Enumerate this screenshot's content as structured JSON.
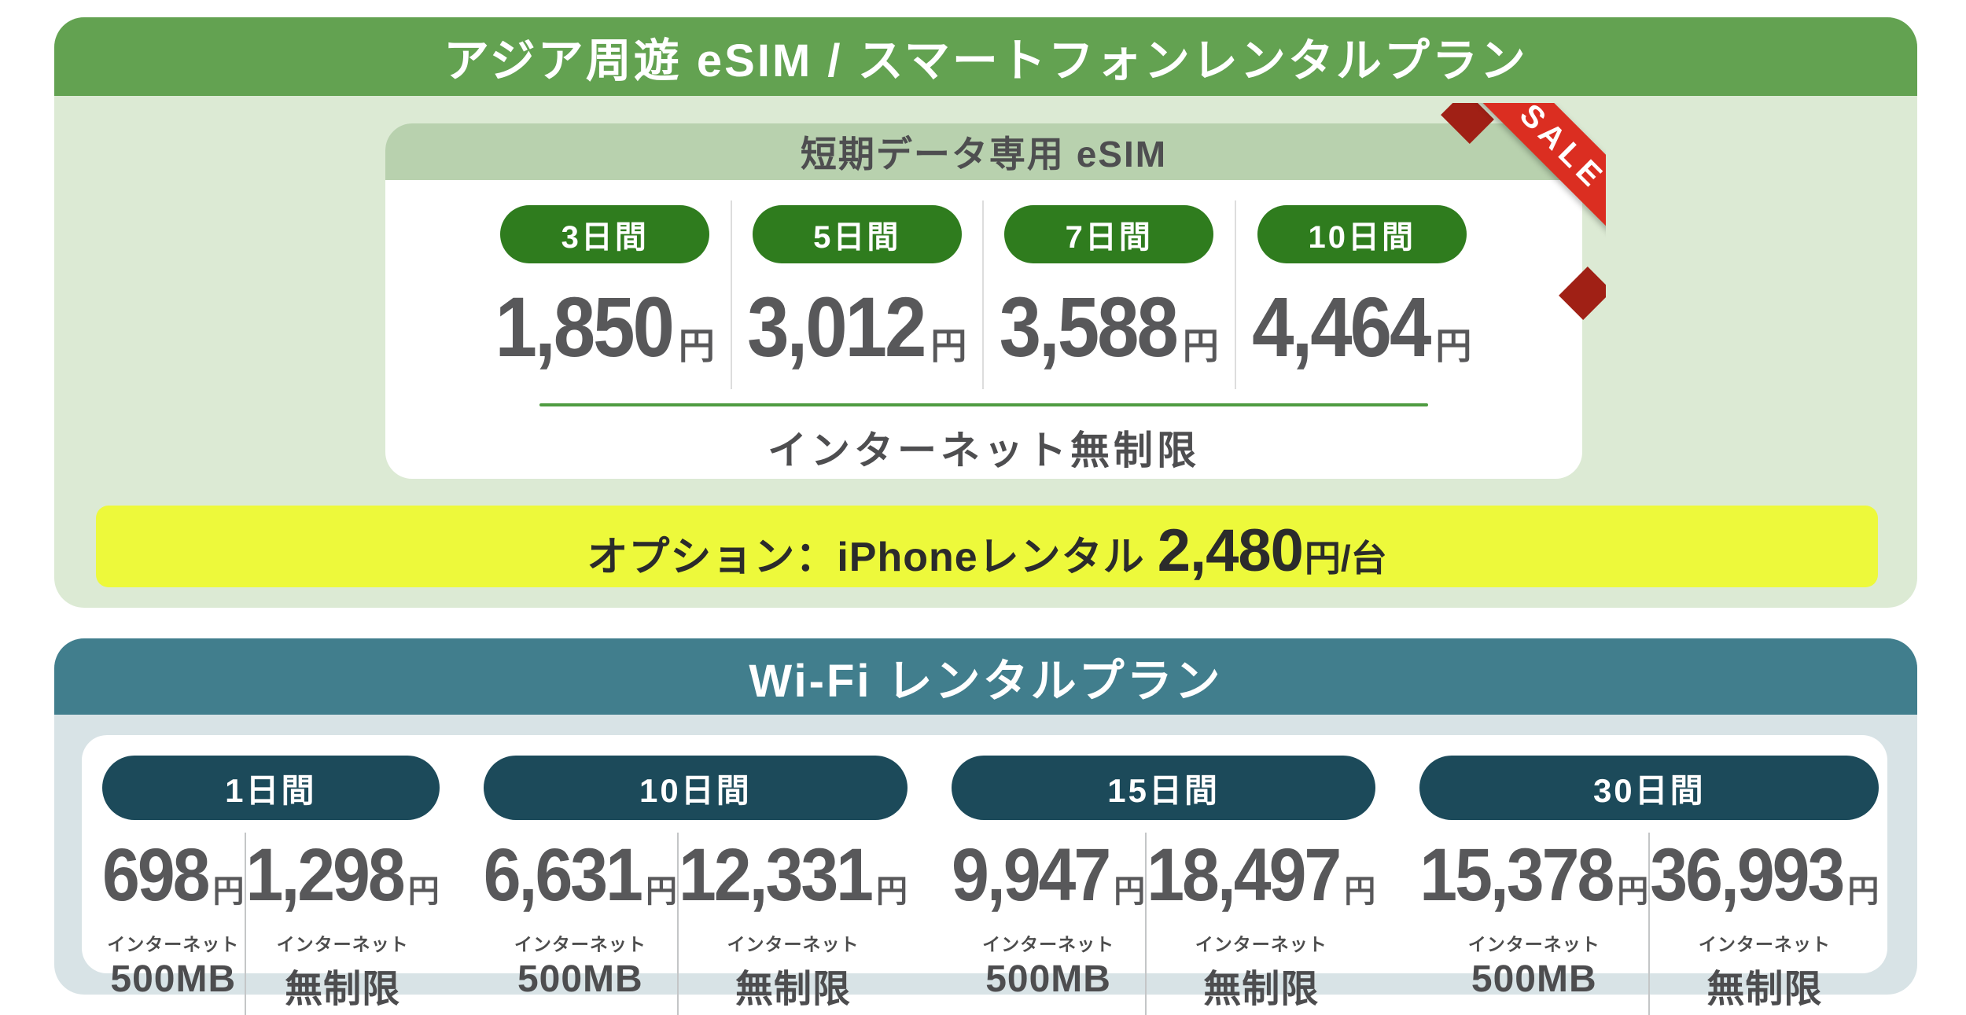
{
  "colors": {
    "esim_header_bg": "#63a251",
    "esim_panel_bg": "#dcead4",
    "esim_card_header_bg": "#b8d1ae",
    "esim_pill_bg": "#2f7c1e",
    "esim_underline": "#4f9c41",
    "price_text": "#58585a",
    "option_bar_bg": "#edf93b",
    "sale_ribbon_red": "#db2e21",
    "wifi_header_bg": "#417e8d",
    "wifi_panel_bg": "#d8e3e6",
    "wifi_pill_bg": "#1c4a5a"
  },
  "esim": {
    "title": "アジア周遊 eSIM / スマートフォンレンタルプラン",
    "card_header": "短期データ専用 eSIM",
    "sale_badge": "SALE",
    "plans": [
      {
        "duration": "3日間",
        "price": "1,850",
        "unit": "円"
      },
      {
        "duration": "5日間",
        "price": "3,012",
        "unit": "円"
      },
      {
        "duration": "7日間",
        "price": "3,588",
        "unit": "円"
      },
      {
        "duration": "10日間",
        "price": "4,464",
        "unit": "円"
      }
    ],
    "note": "インターネット無制限",
    "option": {
      "label": "オプション：iPhoneレンタル",
      "price": "2,480",
      "unit": "円/台"
    }
  },
  "wifi": {
    "title": "Wi-Fi レンタルプラン",
    "plans": [
      {
        "duration": "1日間",
        "options": [
          {
            "price": "698",
            "unit": "円",
            "data_label": "インターネット",
            "data_value": "500MB"
          },
          {
            "price": "1,298",
            "unit": "円",
            "data_label": "インターネット",
            "data_value": "無制限"
          }
        ]
      },
      {
        "duration": "10日間",
        "options": [
          {
            "price": "6,631",
            "unit": "円",
            "data_label": "インターネット",
            "data_value": "500MB"
          },
          {
            "price": "12,331",
            "unit": "円",
            "data_label": "インターネット",
            "data_value": "無制限"
          }
        ]
      },
      {
        "duration": "15日間",
        "options": [
          {
            "price": "9,947",
            "unit": "円",
            "data_label": "インターネット",
            "data_value": "500MB"
          },
          {
            "price": "18,497",
            "unit": "円",
            "data_label": "インターネット",
            "data_value": "無制限"
          }
        ]
      },
      {
        "duration": "30日間",
        "options": [
          {
            "price": "15,378",
            "unit": "円",
            "data_label": "インターネット",
            "data_value": "500MB"
          },
          {
            "price": "36,993",
            "unit": "円",
            "data_label": "インターネット",
            "data_value": "無制限"
          }
        ]
      }
    ]
  }
}
